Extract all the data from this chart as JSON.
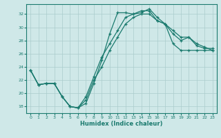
{
  "xlabel": "Humidex (Indice chaleur)",
  "xlim": [
    -0.5,
    23.5
  ],
  "ylim": [
    17,
    33.5
  ],
  "yticks": [
    18,
    20,
    22,
    24,
    26,
    28,
    30,
    32
  ],
  "xticks": [
    0,
    1,
    2,
    3,
    4,
    5,
    6,
    7,
    8,
    9,
    10,
    11,
    12,
    13,
    14,
    15,
    16,
    17,
    18,
    19,
    20,
    21,
    22,
    23
  ],
  "background_color": "#cfe8e8",
  "grid_color": "#aacccc",
  "line_color": "#1a7a6e",
  "curve1_x": [
    0,
    1,
    2,
    3,
    4,
    5,
    6,
    7,
    8,
    9,
    10,
    11,
    12,
    13,
    14,
    15,
    16,
    17,
    18,
    19,
    20,
    21,
    22,
    23
  ],
  "curve1_y": [
    23.5,
    21.3,
    21.5,
    21.5,
    19.5,
    18.0,
    17.8,
    18.5,
    21.5,
    25.0,
    29.0,
    32.2,
    32.2,
    32.0,
    32.2,
    32.8,
    31.5,
    30.5,
    29.5,
    28.5,
    28.5,
    27.2,
    26.8,
    26.8
  ],
  "curve2_x": [
    0,
    1,
    2,
    3,
    4,
    5,
    6,
    7,
    8,
    9,
    10,
    11,
    12,
    13,
    14,
    15,
    16,
    17,
    18,
    19,
    20,
    21,
    22,
    23
  ],
  "curve2_y": [
    23.5,
    21.3,
    21.5,
    21.5,
    19.5,
    18.0,
    17.8,
    19.5,
    22.5,
    25.5,
    27.5,
    29.5,
    31.5,
    32.0,
    32.5,
    32.5,
    31.0,
    30.5,
    29.0,
    28.0,
    28.5,
    27.5,
    27.0,
    26.5
  ],
  "curve3_x": [
    0,
    1,
    2,
    3,
    4,
    5,
    6,
    7,
    8,
    9,
    10,
    11,
    12,
    13,
    14,
    15,
    16,
    17,
    18,
    19,
    20,
    21,
    22,
    23
  ],
  "curve3_y": [
    23.5,
    21.3,
    21.5,
    21.5,
    19.5,
    18.0,
    17.8,
    19.0,
    22.0,
    24.0,
    26.5,
    28.5,
    30.5,
    31.5,
    32.0,
    32.0,
    31.0,
    30.5,
    27.5,
    26.5,
    26.5,
    26.5,
    26.5,
    26.5
  ]
}
